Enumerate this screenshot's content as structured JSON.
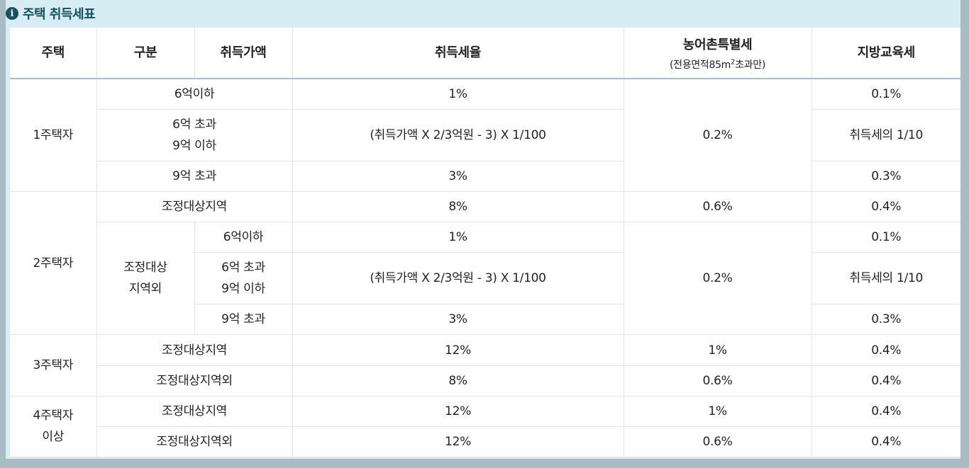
{
  "title": "주택 취득세표",
  "icon": "info-icon",
  "headers": {
    "house": "주택",
    "type": "구분",
    "price": "취득가액",
    "rate": "취득세율",
    "rural": "농어촌특별세",
    "rural_note_pre": "(전용면적85m",
    "rural_note_sup": "2",
    "rural_note_post": "초과만)",
    "edu": "지방교육세"
  },
  "one": {
    "label": "1주택자",
    "r1": {
      "cat": "6억이하",
      "rate": "1%",
      "edu": "0.1%"
    },
    "r2": {
      "cat_l1": "6억 초과",
      "cat_l2": "9억 이하",
      "rate": "(취득가액 X 2/3억원 - 3) X 1/100",
      "edu": "취득세의 1/10"
    },
    "r3": {
      "cat": "9억 초과",
      "rate": "3%",
      "edu": "0.3%"
    },
    "rural": "0.2%"
  },
  "two": {
    "label": "2주택자",
    "r1": {
      "cat": "조정대상지역",
      "rate": "8%",
      "rural": "0.6%",
      "edu": "0.4%"
    },
    "sub_l1": "조정대상",
    "sub_l2": "지역외",
    "r2": {
      "price": "6억이하",
      "rate": "1%",
      "edu": "0.1%"
    },
    "r3": {
      "price_l1": "6억 초과",
      "price_l2": "9억 이하",
      "rate": "(취득가액 X 2/3억원 - 3) X 1/100",
      "edu": "취득세의 1/10"
    },
    "r4": {
      "price": "9억 초과",
      "rate": "3%",
      "edu": "0.3%"
    },
    "rural": "0.2%"
  },
  "three": {
    "label": "3주택자",
    "r1": {
      "cat": "조정대상지역",
      "rate": "12%",
      "rural": "1%",
      "edu": "0.4%"
    },
    "r2": {
      "cat": "조정대상지역외",
      "rate": "8%",
      "rural": "0.6%",
      "edu": "0.4%"
    }
  },
  "four": {
    "label_l1": "4주택자",
    "label_l2": "이상",
    "r1": {
      "cat": "조정대상지역",
      "rate": "12%",
      "rural": "1%",
      "edu": "0.4%"
    },
    "r2": {
      "cat": "조정대상지역외",
      "rate": "12%",
      "rural": "0.6%",
      "edu": "0.4%"
    }
  }
}
